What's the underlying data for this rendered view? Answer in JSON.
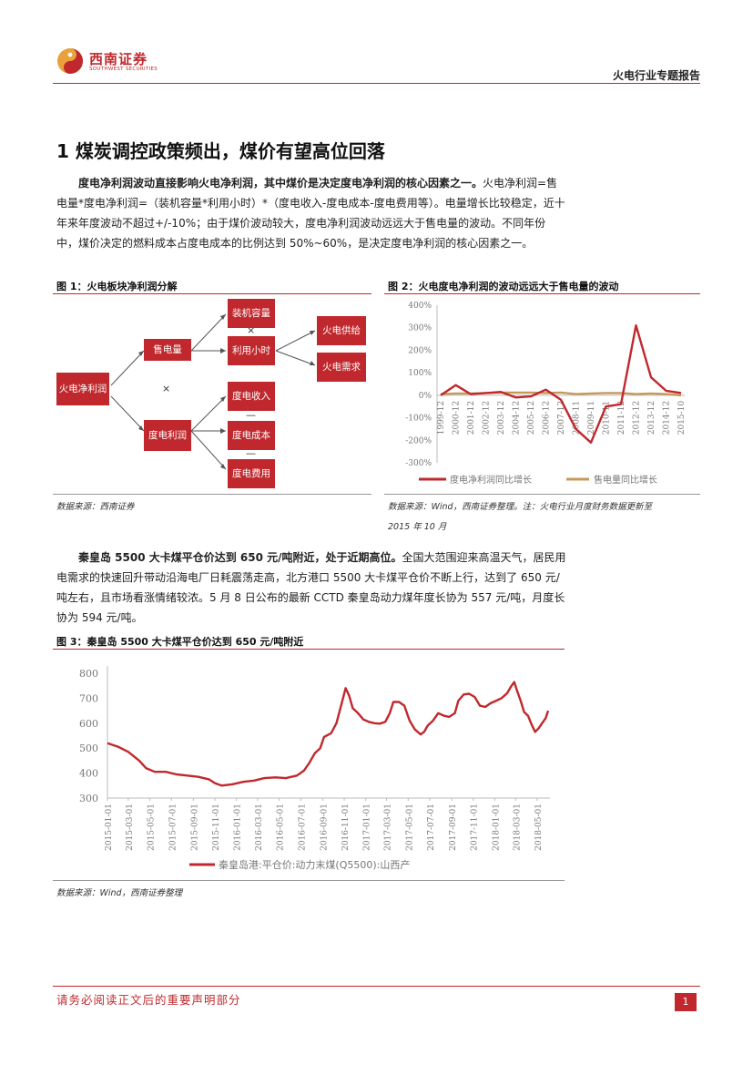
{
  "header": {
    "logo_cn": "西南证券",
    "logo_en": "SOUTHWEST SECURITIES",
    "report_type": "火电行业专题报告"
  },
  "section_title": "1 煤炭调控政策频出，煤价有望高位回落",
  "para1": {
    "bold": "度电净利润波动直接影响火电净利润，其中煤价是决定度电净利润的核心因素之一。",
    "text": "火电净利润=售电量*度电净利润=（装机容量*利用小时）*（度电收入-度电成本-度电费用等）。电量增长比较稳定，近十年来年度波动不超过+/-10%；由于煤价波动较大，度电净利润波动远远大于售电量的波动。不同年份中，煤价决定的燃料成本占度电成本的比例达到 50%~60%，是决定度电净利润的核心因素之一。"
  },
  "fig1": {
    "title": "图 1：火电板块净利润分解",
    "source": "数据来源：西南证券",
    "nodes": {
      "net_profit": "火电净利润",
      "sales": "售电量",
      "unit_profit": "度电利润",
      "capacity": "装机容量",
      "hours": "利用小时",
      "supply": "火电供给",
      "demand": "火电需求",
      "revenue": "度电收入",
      "cost": "度电成本",
      "expense": "度电费用"
    },
    "ops": {
      "times": "×",
      "minus": "—"
    }
  },
  "fig2": {
    "title": "图 2：火电度电净利润的波动远远大于售电量的波动",
    "source_line1": "数据来源：Wind，西南证券整理。注：火电行业月度财务数据更新至",
    "source_line2": "2015 年 10 月",
    "chart_data": {
      "type": "line",
      "x": [
        "1999-12",
        "2000-12",
        "2001-12",
        "2002-12",
        "2003-12",
        "2004-12",
        "2005-12",
        "2006-12",
        "2007-12",
        "2008-11",
        "2009-11",
        "2010-11",
        "2011-12",
        "2012-12",
        "2013-12",
        "2014-12",
        "2015-10"
      ],
      "y_ticks": [
        "400%",
        "300%",
        "200%",
        "100%",
        "0%",
        "-100%",
        "-200%",
        "-300%"
      ],
      "ylim": [
        -300,
        400
      ],
      "series": [
        {
          "name": "度电净利润同比增长",
          "color": "#c0282d",
          "values": [
            0,
            45,
            5,
            10,
            15,
            -10,
            -5,
            25,
            -20,
            -150,
            -210,
            -50,
            -40,
            310,
            80,
            20,
            10
          ]
        },
        {
          "name": "售电量同比增长",
          "color": "#c49a5a",
          "values": [
            5,
            8,
            8,
            10,
            12,
            12,
            12,
            10,
            12,
            5,
            8,
            10,
            10,
            5,
            8,
            5,
            0
          ]
        }
      ],
      "legend": "bottom"
    }
  },
  "para2": {
    "bold": "秦皇岛 5500 大卡煤平仓价达到 650 元/吨附近，处于近期高位。",
    "text": "全国大范围迎来高温天气，居民用电需求的快速回升带动沿海电厂日耗震荡走高，北方港口 5500 大卡煤平仓价不断上行，达到了 650 元/吨左右，且市场看涨情绪较浓。5 月 8 日公布的最新 CCTD 秦皇岛动力煤年度长协为 557 元/吨，月度长协为 594 元/吨。"
  },
  "fig3": {
    "title": "图 3：秦皇岛 5500 大卡煤平仓价达到 650 元/吨附近",
    "source": "数据来源：Wind，西南证券整理",
    "chart_data": {
      "type": "line",
      "x_ticks": [
        "2015-01-01",
        "2015-03-01",
        "2015-05-01",
        "2015-07-01",
        "2015-09-01",
        "2015-11-01",
        "2016-01-01",
        "2016-03-01",
        "2016-05-01",
        "2016-07-01",
        "2016-09-01",
        "2016-11-01",
        "2017-01-01",
        "2017-03-01",
        "2017-05-01",
        "2017-07-01",
        "2017-09-01",
        "2017-11-01",
        "2018-01-01",
        "2018-03-01",
        "2018-05-01"
      ],
      "y_ticks": [
        800,
        700,
        600,
        500,
        400,
        300
      ],
      "ylim": [
        300,
        800
      ],
      "series": [
        {
          "name": "秦皇岛港:平仓价:动力末煤(Q5500):山西产",
          "color": "#c0282d",
          "points": [
            [
              "2015-01-01",
              520
            ],
            [
              "2015-02-01",
              505
            ],
            [
              "2015-03-01",
              485
            ],
            [
              "2015-04-01",
              450
            ],
            [
              "2015-04-20",
              420
            ],
            [
              "2015-05-15",
              405
            ],
            [
              "2015-06-15",
              405
            ],
            [
              "2015-07-15",
              395
            ],
            [
              "2015-08-15",
              390
            ],
            [
              "2015-09-15",
              385
            ],
            [
              "2015-10-15",
              375
            ],
            [
              "2015-11-01",
              360
            ],
            [
              "2015-11-20",
              350
            ],
            [
              "2015-12-20",
              355
            ],
            [
              "2016-01-20",
              365
            ],
            [
              "2016-02-20",
              370
            ],
            [
              "2016-03-20",
              380
            ],
            [
              "2016-04-20",
              383
            ],
            [
              "2016-05-20",
              380
            ],
            [
              "2016-06-20",
              390
            ],
            [
              "2016-07-10",
              410
            ],
            [
              "2016-07-25",
              440
            ],
            [
              "2016-08-10",
              480
            ],
            [
              "2016-08-25",
              500
            ],
            [
              "2016-09-05",
              545
            ],
            [
              "2016-09-25",
              560
            ],
            [
              "2016-10-10",
              600
            ],
            [
              "2016-10-25",
              680
            ],
            [
              "2016-11-05",
              740
            ],
            [
              "2016-11-15",
              710
            ],
            [
              "2016-11-25",
              660
            ],
            [
              "2016-12-10",
              640
            ],
            [
              "2016-12-25",
              615
            ],
            [
              "2017-01-10",
              605
            ],
            [
              "2017-01-25",
              600
            ],
            [
              "2017-02-10",
              598
            ],
            [
              "2017-02-25",
              605
            ],
            [
              "2017-03-10",
              640
            ],
            [
              "2017-03-20",
              685
            ],
            [
              "2017-04-05",
              685
            ],
            [
              "2017-04-20",
              670
            ],
            [
              "2017-05-05",
              610
            ],
            [
              "2017-05-20",
              575
            ],
            [
              "2017-06-05",
              555
            ],
            [
              "2017-06-15",
              565
            ],
            [
              "2017-06-25",
              590
            ],
            [
              "2017-07-10",
              610
            ],
            [
              "2017-07-25",
              640
            ],
            [
              "2017-08-10",
              630
            ],
            [
              "2017-08-25",
              625
            ],
            [
              "2017-09-10",
              640
            ],
            [
              "2017-09-20",
              690
            ],
            [
              "2017-10-05",
              715
            ],
            [
              "2017-10-20",
              718
            ],
            [
              "2017-11-05",
              705
            ],
            [
              "2017-11-20",
              670
            ],
            [
              "2017-12-05",
              665
            ],
            [
              "2017-12-20",
              680
            ],
            [
              "2018-01-05",
              690
            ],
            [
              "2018-01-20",
              700
            ],
            [
              "2018-02-05",
              720
            ],
            [
              "2018-02-15",
              745
            ],
            [
              "2018-02-25",
              765
            ],
            [
              "2018-03-05",
              730
            ],
            [
              "2018-03-15",
              690
            ],
            [
              "2018-03-25",
              645
            ],
            [
              "2018-04-05",
              630
            ],
            [
              "2018-04-15",
              595
            ],
            [
              "2018-04-25",
              565
            ],
            [
              "2018-05-05",
              580
            ],
            [
              "2018-05-15",
              600
            ],
            [
              "2018-05-25",
              620
            ],
            [
              "2018-06-01",
              650
            ]
          ]
        }
      ],
      "legend": "bottom"
    }
  },
  "footer": {
    "disclaimer": "请务必阅读正文后的重要声明部分",
    "page": "1"
  }
}
